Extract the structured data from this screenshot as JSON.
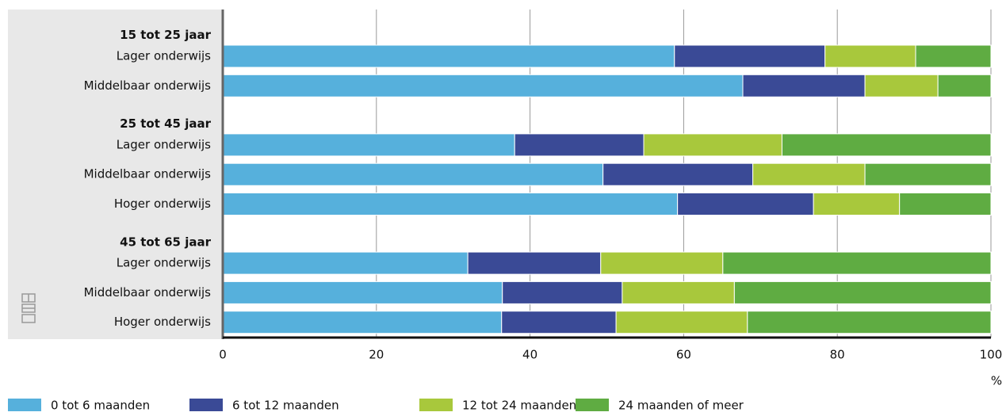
{
  "chart_data": {
    "type": "stacked_barh",
    "categories": [
      "15 tot 25 jaar",
      "Lager onderwijs",
      "Middelbaar onderwijs",
      "25 tot 45 jaar",
      "Lager onderwijs",
      "Middelbaar onderwijs",
      "Hoger onderwijs",
      "45 tot 65 jaar",
      "Lager onderwijs",
      "Middelbaar onderwijs",
      "Hoger onderwijs"
    ],
    "series": [
      {
        "name": "0 tot 6 maanden",
        "color": "#56b0dc",
        "values": [
          null,
          58.8,
          67.7,
          null,
          38.0,
          49.5,
          59.2,
          null,
          31.9,
          36.4,
          36.3
        ]
      },
      {
        "name": "6 tot 12 maanden",
        "color": "#3a4a96",
        "values": [
          null,
          19.6,
          15.9,
          null,
          16.8,
          19.5,
          17.7,
          null,
          17.3,
          15.6,
          14.9
        ]
      },
      {
        "name": "12 tot 24 maanden",
        "color": "#a8c83c",
        "values": [
          null,
          11.8,
          9.5,
          null,
          18.0,
          14.6,
          11.2,
          null,
          15.9,
          14.6,
          17.1
        ]
      },
      {
        "name": "24 maanden of meer",
        "color": "#5fac42",
        "values": [
          null,
          9.8,
          6.9,
          null,
          27.2,
          16.4,
          11.9,
          null,
          34.9,
          33.4,
          31.7
        ]
      }
    ],
    "x_label": "%",
    "xlim": [
      0,
      100
    ],
    "xticks": [
      0,
      20,
      40,
      60,
      80,
      100
    ],
    "grid": true,
    "legend": "bottom"
  }
}
